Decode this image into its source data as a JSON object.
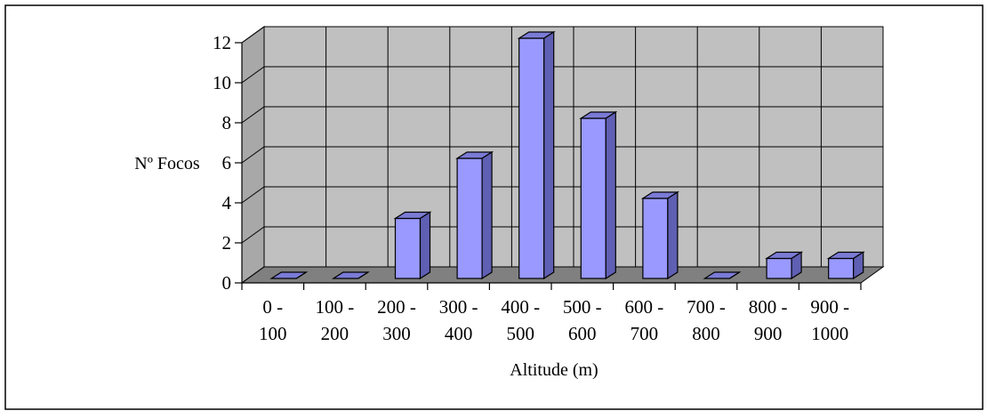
{
  "chart_data": {
    "type": "bar",
    "title": "",
    "xlabel": "Altitude (m)",
    "ylabel": "Nº Focos",
    "categories": [
      [
        "0 -",
        "100"
      ],
      [
        "100 -",
        "200"
      ],
      [
        "200 -",
        "300"
      ],
      [
        "300 -",
        "400"
      ],
      [
        "400 -",
        "500"
      ],
      [
        "500 -",
        "600"
      ],
      [
        "600 -",
        "700"
      ],
      [
        "700 -",
        "800"
      ],
      [
        "800 -",
        "900"
      ],
      [
        "900 -",
        "1000"
      ]
    ],
    "values": [
      0,
      0,
      3,
      6,
      12,
      8,
      4,
      0,
      1,
      1
    ],
    "ylim": [
      0,
      12
    ],
    "yticks": [
      "0",
      "2",
      "4",
      "6",
      "8",
      "10",
      "12"
    ],
    "grid": true,
    "legend": "none",
    "style": "3d-column",
    "colors": {
      "bar_front": "#9999ff",
      "bar_top": "#7b7bd6",
      "bar_side": "#5f5fb3",
      "back_wall": "#c0c0c0",
      "floor": "#808080",
      "grid": "#000000"
    }
  }
}
